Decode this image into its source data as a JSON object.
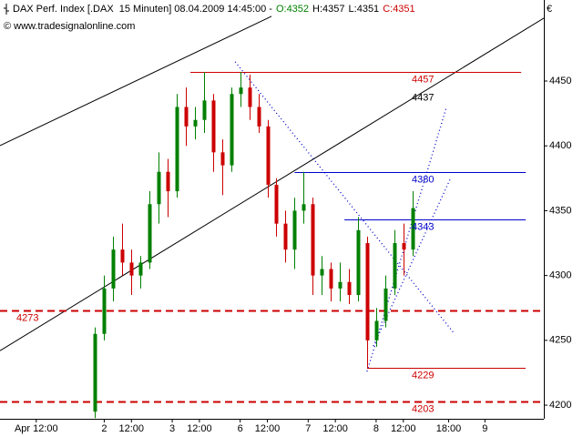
{
  "chart_data": {
    "type": "candlestick",
    "header": [
      "DAX Perf. Index [.DAX  15 Minuten] 08.04.2009 14:45:00 -",
      "O:4352",
      "H:4357",
      "L:4351",
      "C:4351"
    ],
    "header_colors": [
      "#000000",
      "#008000",
      "#000000",
      "#000000",
      "#cc0000"
    ],
    "copyright": "© www.tradesignalonline.com",
    "currency": "€",
    "up_color": "#008000",
    "down_color": "#cc0000",
    "x": [
      21,
      23,
      25,
      27,
      29,
      31,
      33,
      35,
      37,
      39,
      41,
      43,
      45,
      47,
      49,
      51,
      53,
      55,
      57,
      59,
      61,
      63,
      65,
      67,
      69,
      71,
      73,
      75,
      77,
      79,
      81,
      83,
      85,
      87,
      89,
      91
    ],
    "open": [
      4195,
      4255,
      4290,
      4320,
      4310,
      4300,
      4310,
      4355,
      4380,
      4365,
      4430,
      4415,
      4420,
      4435,
      4395,
      4385,
      4440,
      4445,
      4430,
      4415,
      4370,
      4340,
      4320,
      4350,
      4355,
      4300,
      4305,
      4290,
      4295,
      4285,
      4325,
      4250,
      4265,
      4290,
      4325,
      4320
    ],
    "high": [
      4260,
      4300,
      4330,
      4340,
      4320,
      4315,
      4365,
      4395,
      4390,
      4440,
      4445,
      4430,
      4457,
      4440,
      4405,
      4445,
      4457,
      4455,
      4440,
      4420,
      4375,
      4350,
      4360,
      4380,
      4360,
      4315,
      4310,
      4310,
      4305,
      4345,
      4330,
      4275,
      4300,
      4335,
      4340,
      4365
    ],
    "low": [
      4190,
      4250,
      4280,
      4300,
      4285,
      4290,
      4305,
      4340,
      4345,
      4360,
      4400,
      4405,
      4410,
      4380,
      4362,
      4380,
      4430,
      4420,
      4410,
      4360,
      4330,
      4310,
      4305,
      4340,
      4285,
      4285,
      4280,
      4280,
      4278,
      4280,
      4229,
      4245,
      4260,
      4285,
      4300,
      4315
    ],
    "close": [
      4255,
      4290,
      4320,
      4310,
      4300,
      4310,
      4355,
      4380,
      4365,
      4430,
      4415,
      4420,
      4435,
      4395,
      4385,
      4440,
      4445,
      4430,
      4415,
      4370,
      4340,
      4320,
      4350,
      4355,
      4300,
      4305,
      4290,
      4295,
      4285,
      4335,
      4250,
      4265,
      4290,
      4325,
      4320,
      4352
    ],
    "xlim": [
      0,
      120
    ],
    "xticks": [
      {
        "value": 8,
        "label": "Apr 12:00"
      },
      {
        "value": 23,
        "label": "2"
      },
      {
        "value": 29,
        "label": "12:00"
      },
      {
        "value": 38,
        "label": "3"
      },
      {
        "value": 44,
        "label": "12:00"
      },
      {
        "value": 53,
        "label": "6"
      },
      {
        "value": 59,
        "label": "12:00"
      },
      {
        "value": 68,
        "label": "7"
      },
      {
        "value": 74,
        "label": "12:00"
      },
      {
        "value": 83,
        "label": "8"
      },
      {
        "value": 89,
        "label": "12:00"
      },
      {
        "value": 99,
        "label": "18:00"
      },
      {
        "value": 107,
        "label": "9"
      }
    ],
    "ylim": [
      4189.5,
      4512.5
    ],
    "yticks": [
      4200,
      4250,
      4300,
      4350,
      4400,
      4450
    ],
    "levels": [
      {
        "value": 4457,
        "x": [
          42,
          115
        ],
        "color": "#cc0000",
        "style": "solid"
      },
      {
        "value": 4380,
        "x": [
          65,
          116
        ],
        "color": "#0000cc",
        "style": "solid"
      },
      {
        "value": 4343,
        "x": [
          76,
          116
        ],
        "color": "#0000cc",
        "style": "solid"
      },
      {
        "value": 4229,
        "x": [
          81,
          116
        ],
        "color": "#cc0000",
        "style": "solid"
      },
      {
        "value": 4273,
        "x": [
          0,
          120
        ],
        "color": "#cc0000",
        "style": "dashed"
      },
      {
        "value": 4203,
        "x": [
          0,
          120
        ],
        "color": "#cc0000",
        "style": "dashed"
      }
    ],
    "channel_label": 4437,
    "trend_lines": [
      {
        "x": [
          0,
          59.9
        ],
        "y": [
          4400.2,
          4499.9
        ],
        "color": "#000000",
        "style": "solid"
      },
      {
        "x": [
          0,
          120
        ],
        "y": [
          4242,
          4498.5
        ],
        "color": "#000000",
        "style": "solid"
      },
      {
        "x": [
          51.9,
          100
        ],
        "y": [
          4464.8,
          4256.3
        ],
        "color": "#0000cc",
        "style": "dotted"
      },
      {
        "x": [
          81,
          98.5
        ],
        "y": [
          4226,
          4429.7
        ],
        "color": "#0000cc",
        "style": "dotted"
      },
      {
        "x": [
          82.4,
          99.5
        ],
        "y": [
          4245.7,
          4375.6
        ],
        "color": "#0000cc",
        "style": "dotted"
      }
    ]
  }
}
